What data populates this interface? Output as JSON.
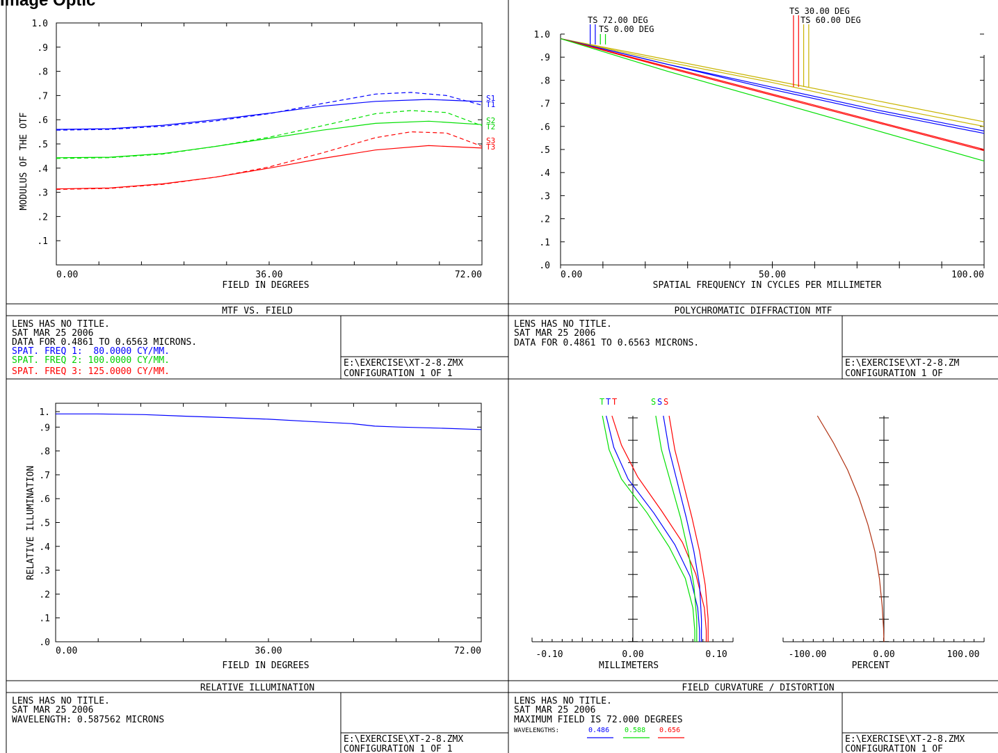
{
  "window": {
    "title": "Image Optic"
  },
  "mtf_field": {
    "caption": "MTF VS. FIELD",
    "chart_data": {
      "type": "line",
      "xlabel": "FIELD IN DEGREES",
      "ylabel": "MODULUS OF THE OTF",
      "xlim": [
        0,
        72
      ],
      "ylim": [
        0,
        1
      ],
      "x_ticks": [
        "0.00",
        "36.00",
        "72.00"
      ],
      "y_ticks": [
        "1.0",
        ".9",
        ".8",
        ".7",
        ".6",
        ".5",
        ".4",
        ".3",
        ".2",
        ".1"
      ],
      "series": [
        {
          "name": "S1",
          "color": "#0000ff",
          "style": "solid",
          "points": [
            [
              0,
              0.56
            ],
            [
              9,
              0.563
            ],
            [
              18,
              0.577
            ],
            [
              27,
              0.6
            ],
            [
              36,
              0.627
            ],
            [
              45,
              0.656
            ],
            [
              54,
              0.676
            ],
            [
              63,
              0.684
            ],
            [
              72,
              0.675
            ]
          ]
        },
        {
          "name": "T1",
          "color": "#0000ff",
          "style": "dashed",
          "points": [
            [
              0,
              0.557
            ],
            [
              9,
              0.56
            ],
            [
              18,
              0.573
            ],
            [
              27,
              0.595
            ],
            [
              36,
              0.625
            ],
            [
              45,
              0.667
            ],
            [
              54,
              0.706
            ],
            [
              60,
              0.713
            ],
            [
              66,
              0.7
            ],
            [
              72,
              0.66
            ]
          ]
        },
        {
          "name": "S2",
          "color": "#00e000",
          "style": "solid",
          "points": [
            [
              0,
              0.443
            ],
            [
              9,
              0.445
            ],
            [
              18,
              0.46
            ],
            [
              27,
              0.49
            ],
            [
              36,
              0.523
            ],
            [
              45,
              0.557
            ],
            [
              54,
              0.585
            ],
            [
              63,
              0.594
            ],
            [
              72,
              0.58
            ]
          ]
        },
        {
          "name": "T2",
          "color": "#00e000",
          "style": "dashed",
          "points": [
            [
              0,
              0.44
            ],
            [
              9,
              0.443
            ],
            [
              18,
              0.458
            ],
            [
              27,
              0.49
            ],
            [
              36,
              0.528
            ],
            [
              45,
              0.575
            ],
            [
              54,
              0.625
            ],
            [
              60,
              0.638
            ],
            [
              66,
              0.63
            ],
            [
              72,
              0.575
            ]
          ]
        },
        {
          "name": "S3",
          "color": "#ff0000",
          "style": "solid",
          "points": [
            [
              0,
              0.314
            ],
            [
              9,
              0.318
            ],
            [
              18,
              0.335
            ],
            [
              27,
              0.363
            ],
            [
              36,
              0.4
            ],
            [
              45,
              0.44
            ],
            [
              54,
              0.475
            ],
            [
              63,
              0.493
            ],
            [
              72,
              0.483
            ]
          ]
        },
        {
          "name": "T3",
          "color": "#ff0000",
          "style": "dashed",
          "points": [
            [
              0,
              0.312
            ],
            [
              9,
              0.316
            ],
            [
              18,
              0.333
            ],
            [
              27,
              0.363
            ],
            [
              36,
              0.405
            ],
            [
              45,
              0.463
            ],
            [
              54,
              0.526
            ],
            [
              60,
              0.55
            ],
            [
              66,
              0.545
            ],
            [
              72,
              0.49
            ]
          ]
        }
      ],
      "series_labels": [
        [
          "S1",
          "T1"
        ],
        [
          "S2",
          "T2"
        ],
        [
          "S3",
          "T3"
        ]
      ]
    },
    "info": {
      "line1": "LENS HAS NO TITLE.",
      "line2": "SAT MAR 25 2006",
      "line3": "DATA FOR 0.4861 TO 0.6563 MICRONS.",
      "freq1": "SPAT. FREQ 1:  80.0000 CY/MM.",
      "freq2": "SPAT. FREQ 2: 100.0000 CY/MM.",
      "freq3": "SPAT. FREQ 3: 125.0000 CY/MM.",
      "file": "E:\\EXERCISE\\XT-2-8.ZMX",
      "config": "CONFIGURATION 1 OF 1"
    }
  },
  "poly_mtf": {
    "caption": "POLYCHROMATIC DIFFRACTION MTF",
    "chart_data": {
      "type": "line",
      "xlabel": "SPATIAL FREQUENCY IN CYCLES PER MILLIMETER",
      "xlim": [
        0,
        100
      ],
      "ylim": [
        0,
        1
      ],
      "x_ticks": [
        "0.00",
        "50.00",
        "100.00"
      ],
      "y_ticks": [
        "1.0",
        ".9",
        ".8",
        ".7",
        ".6",
        ".5",
        ".4",
        ".3",
        ".2",
        ".1",
        ".0"
      ],
      "field_labels": [
        "TS 72.00 DEG",
        "TS 0.00 DEG",
        "TS 30.00 DEG",
        "TS 60.00 DEG"
      ],
      "series": [
        {
          "color": "#c8b400",
          "points": [
            [
              0,
              0.98
            ],
            [
              25,
              0.89
            ],
            [
              50,
              0.8
            ],
            [
              75,
              0.71
            ],
            [
              100,
              0.62
            ]
          ]
        },
        {
          "color": "#c8b400",
          "points": [
            [
              0,
              0.98
            ],
            [
              25,
              0.88
            ],
            [
              50,
              0.79
            ],
            [
              75,
              0.69
            ],
            [
              100,
              0.6
            ]
          ]
        },
        {
          "color": "#0000ff",
          "points": [
            [
              0,
              0.98
            ],
            [
              25,
              0.87
            ],
            [
              50,
              0.77
            ],
            [
              75,
              0.67
            ],
            [
              100,
              0.58
            ]
          ]
        },
        {
          "color": "#0000ff",
          "points": [
            [
              0,
              0.98
            ],
            [
              25,
              0.87
            ],
            [
              50,
              0.76
            ],
            [
              75,
              0.66
            ],
            [
              100,
              0.57
            ]
          ]
        },
        {
          "color": "#ff0000",
          "points": [
            [
              0,
              0.98
            ],
            [
              25,
              0.86
            ],
            [
              50,
              0.74
            ],
            [
              75,
              0.62
            ],
            [
              100,
              0.5
            ]
          ]
        },
        {
          "color": "#ff0000",
          "points": [
            [
              0,
              0.98
            ],
            [
              25,
              0.855
            ],
            [
              50,
              0.735
            ],
            [
              75,
              0.615
            ],
            [
              100,
              0.495
            ]
          ]
        },
        {
          "color": "#00e000",
          "points": [
            [
              0,
              0.98
            ],
            [
              25,
              0.84
            ],
            [
              50,
              0.71
            ],
            [
              75,
              0.58
            ],
            [
              100,
              0.45
            ]
          ]
        }
      ],
      "field_markers": [
        {
          "x": 7.0,
          "color": "#0000ff"
        },
        {
          "x": 8.2,
          "color": "#0000ff"
        },
        {
          "x": 9.4,
          "color": "#00e000"
        },
        {
          "x": 10.6,
          "color": "#00e000"
        },
        {
          "x": 55.0,
          "color": "#ff0000"
        },
        {
          "x": 56.2,
          "color": "#ff0000"
        },
        {
          "x": 57.4,
          "color": "#c8b400"
        },
        {
          "x": 58.6,
          "color": "#c8b400"
        }
      ]
    },
    "info": {
      "line1": "LENS HAS NO TITLE.",
      "line2": "SAT MAR 25 2006",
      "line3": "DATA FOR 0.4861 TO 0.6563 MICRONS.",
      "file": "E:\\EXERCISE\\XT-2-8.ZM",
      "config": "CONFIGURATION 1 OF"
    }
  },
  "rel_illum": {
    "caption": "RELATIVE ILLUMINATION",
    "chart_data": {
      "type": "line",
      "xlabel": "FIELD IN DEGREES",
      "ylabel": "RELATIVE ILLUMINATION",
      "xlim": [
        0,
        72
      ],
      "ylim": [
        0,
        1
      ],
      "x_ticks": [
        "0.00",
        "36.00",
        "72.00"
      ],
      "y_ticks": [
        "1.",
        ".9",
        ".8",
        ".7",
        ".6",
        ".5",
        ".4",
        ".3",
        ".2",
        ".1",
        ".0"
      ],
      "series": [
        {
          "color": "#0000ff",
          "points": [
            [
              0,
              0.99
            ],
            [
              7,
              0.99
            ],
            [
              15,
              0.987
            ],
            [
              22,
              0.98
            ],
            [
              29,
              0.974
            ],
            [
              36,
              0.967
            ],
            [
              43,
              0.957
            ],
            [
              50,
              0.948
            ],
            [
              54,
              0.937
            ],
            [
              58,
              0.933
            ],
            [
              65,
              0.928
            ],
            [
              72,
              0.922
            ]
          ]
        }
      ]
    },
    "info": {
      "line1": "LENS HAS NO TITLE.",
      "line2": "SAT MAR 25 2006",
      "line3": "WAVELENGTH: 0.587562 MICRONS",
      "file": "E:\\EXERCISE\\XT-2-8.ZMX",
      "config": "CONFIGURATION 1 OF 1"
    }
  },
  "field_curv": {
    "caption": "FIELD CURVATURE / DISTORTION",
    "curvature": {
      "xlabel": "MILLIMETERS",
      "xlim": [
        -0.1,
        0.1
      ],
      "x_ticks": [
        "-0.10",
        "0.00",
        "0.10"
      ],
      "top_labels": {
        "tangential": "T",
        "sagittal": "S"
      },
      "series": [
        {
          "color": "#00e000",
          "kind": "T",
          "points": [
            [
              -0.032,
              1
            ],
            [
              -0.025,
              0.85
            ],
            [
              -0.012,
              0.72
            ],
            [
              0.015,
              0.57
            ],
            [
              0.038,
              0.42
            ],
            [
              0.055,
              0.28
            ],
            [
              0.063,
              0.15
            ],
            [
              0.065,
              0.05
            ],
            [
              0.065,
              0
            ]
          ]
        },
        {
          "color": "#0000ff",
          "kind": "T",
          "points": [
            [
              -0.028,
              1
            ],
            [
              -0.02,
              0.86
            ],
            [
              -0.005,
              0.72
            ],
            [
              0.022,
              0.57
            ],
            [
              0.044,
              0.43
            ],
            [
              0.06,
              0.29
            ],
            [
              0.068,
              0.15
            ],
            [
              0.07,
              0.05
            ],
            [
              0.07,
              0
            ]
          ]
        },
        {
          "color": "#ff0000",
          "kind": "T",
          "points": [
            [
              -0.022,
              1
            ],
            [
              -0.012,
              0.87
            ],
            [
              0.005,
              0.73
            ],
            [
              0.03,
              0.58
            ],
            [
              0.052,
              0.44
            ],
            [
              0.066,
              0.3
            ],
            [
              0.075,
              0.15
            ],
            [
              0.077,
              0.05
            ],
            [
              0.077,
              0
            ]
          ]
        },
        {
          "color": "#00e000",
          "kind": "S",
          "points": [
            [
              0.024,
              1
            ],
            [
              0.03,
              0.85
            ],
            [
              0.04,
              0.7
            ],
            [
              0.05,
              0.55
            ],
            [
              0.058,
              0.4
            ],
            [
              0.064,
              0.25
            ],
            [
              0.067,
              0.1
            ],
            [
              0.067,
              0
            ]
          ]
        },
        {
          "color": "#0000ff",
          "kind": "S",
          "points": [
            [
              0.032,
              1
            ],
            [
              0.038,
              0.85
            ],
            [
              0.047,
              0.7
            ],
            [
              0.056,
              0.55
            ],
            [
              0.064,
              0.4
            ],
            [
              0.07,
              0.25
            ],
            [
              0.072,
              0.1
            ],
            [
              0.072,
              0
            ]
          ]
        },
        {
          "color": "#ff0000",
          "kind": "S",
          "points": [
            [
              0.038,
              1
            ],
            [
              0.044,
              0.85
            ],
            [
              0.053,
              0.7
            ],
            [
              0.062,
              0.55
            ],
            [
              0.07,
              0.4
            ],
            [
              0.076,
              0.25
            ],
            [
              0.079,
              0.1
            ],
            [
              0.079,
              0
            ]
          ]
        }
      ]
    },
    "distortion": {
      "xlabel": "PERCENT",
      "xlim": [
        -100,
        100
      ],
      "x_ticks": [
        "-100.00",
        "0.00",
        "100.00"
      ],
      "series": [
        {
          "color": "#b03010",
          "points": [
            [
              -66,
              1
            ],
            [
              -50,
              0.88
            ],
            [
              -36,
              0.76
            ],
            [
              -25,
              0.64
            ],
            [
              -16,
              0.52
            ],
            [
              -9,
              0.4
            ],
            [
              -4.5,
              0.28
            ],
            [
              -1.8,
              0.16
            ],
            [
              -0.4,
              0.06
            ],
            [
              0,
              0
            ]
          ]
        }
      ]
    },
    "info": {
      "line1": "LENS HAS NO TITLE.",
      "line2": "SAT MAR 25 2006",
      "line3": "MAXIMUM FIELD IS 72.000 DEGREES",
      "wl_label": "WAVELENGTHS:",
      "wavelengths": [
        {
          "value": "0.486",
          "color": "#0000ff"
        },
        {
          "value": "0.588",
          "color": "#00e000"
        },
        {
          "value": "0.656",
          "color": "#ff0000"
        }
      ],
      "file": "E:\\EXERCISE\\XT-2-8.ZMX",
      "config": "CONFIGURATION 1 OF"
    }
  }
}
